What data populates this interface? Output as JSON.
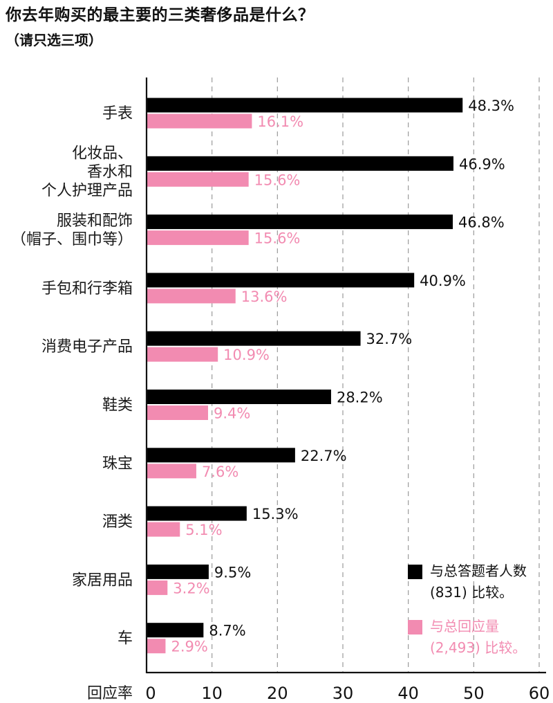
{
  "title": "你去年购买的最主要的三类奢侈品是什么？",
  "subtitle": "（请只选三项）",
  "chart_data": {
    "type": "bar",
    "orientation": "horizontal",
    "categories": [
      [
        "手表"
      ],
      [
        "化妆品、",
        "香水和",
        "个人护理产品"
      ],
      [
        "服装和配饰",
        "（帽子、围巾等）"
      ],
      [
        "手包和行李箱"
      ],
      [
        "消费电子产品"
      ],
      [
        "鞋类"
      ],
      [
        "珠宝"
      ],
      [
        "酒类"
      ],
      [
        "家居用品"
      ],
      [
        "车"
      ]
    ],
    "series": [
      {
        "name": "与总答题者人数\n(831) 比较。",
        "color": "#000000",
        "values": [
          48.3,
          46.9,
          46.8,
          40.9,
          32.7,
          28.2,
          22.7,
          15.3,
          9.5,
          8.7
        ],
        "labels": [
          "48.3%",
          "46.9%",
          "46.8%",
          "40.9%",
          "32.7%",
          "28.2%",
          "22.7%",
          "15.3%",
          "9.5%",
          "8.7%"
        ]
      },
      {
        "name": "与总回应量\n(2,493) 比较。",
        "color": "#f28bb1",
        "values": [
          16.1,
          15.6,
          15.6,
          13.6,
          10.9,
          9.4,
          7.6,
          5.1,
          3.2,
          2.9
        ],
        "labels": [
          "16.1%",
          "15.6%",
          "15.6%",
          "13.6%",
          "10.9%",
          "9.4%",
          "7.6%",
          "5.1%",
          "3.2%",
          "2.9%"
        ]
      }
    ],
    "xlabel": "回应率",
    "xlim": [
      0,
      60
    ],
    "xticks": [
      0,
      10,
      20,
      30,
      40,
      50,
      60
    ],
    "xtick_labels": [
      "0",
      "10",
      "20",
      "30",
      "40",
      "50",
      "60"
    ],
    "grid": "vertical-dashed",
    "legend_position": "bottom-right"
  }
}
